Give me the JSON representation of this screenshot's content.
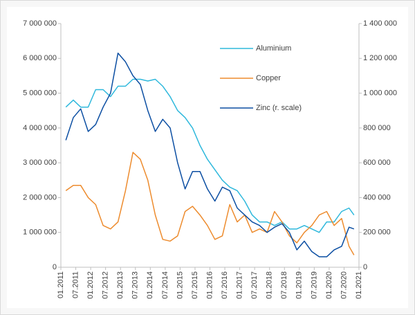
{
  "chart_data": {
    "type": "line",
    "x": [
      "2011-03",
      "2011-06",
      "2011-09",
      "2011-12",
      "2012-03",
      "2012-06",
      "2012-09",
      "2012-12",
      "2013-03",
      "2013-06",
      "2013-09",
      "2013-12",
      "2014-03",
      "2014-06",
      "2014-09",
      "2014-12",
      "2015-03",
      "2015-06",
      "2015-09",
      "2015-12",
      "2016-03",
      "2016-06",
      "2016-09",
      "2016-12",
      "2017-03",
      "2017-06",
      "2017-09",
      "2017-12",
      "2018-03",
      "2018-06",
      "2018-09",
      "2018-12",
      "2019-03",
      "2019-06",
      "2019-09",
      "2019-12",
      "2020-03",
      "2020-06",
      "2020-09",
      "2020-11"
    ],
    "series": [
      {
        "name": "Aluminium",
        "color": "#2eb8dc",
        "values": [
          4600000,
          4800000,
          4600000,
          4600000,
          5100000,
          5100000,
          4900000,
          5200000,
          5200000,
          5400000,
          5400000,
          5350000,
          5400000,
          5200000,
          4900000,
          4500000,
          4300000,
          4000000,
          3500000,
          3100000,
          2800000,
          2500000,
          2300000,
          2200000,
          1900000,
          1500000,
          1300000,
          1300000,
          1200000,
          1300000,
          1100000,
          1100000,
          1200000,
          1100000,
          1000000,
          1300000,
          1300000,
          1600000,
          1700000,
          1500000
        ]
      },
      {
        "name": "Copper",
        "color": "#ed8b2d",
        "values": [
          2200000,
          2350000,
          2350000,
          2000000,
          1800000,
          1200000,
          1100000,
          1300000,
          2200000,
          3300000,
          3100000,
          2500000,
          1500000,
          800000,
          750000,
          900000,
          1600000,
          1750000,
          1500000,
          1200000,
          800000,
          900000,
          1800000,
          1300000,
          1500000,
          1000000,
          1100000,
          1000000,
          1600000,
          1300000,
          900000,
          700000,
          1000000,
          1200000,
          1500000,
          1600000,
          1200000,
          1400000,
          600000,
          350000
        ]
      },
      {
        "name": "Zinc (r. scale)",
        "color": "#0b4ea2",
        "axis": "y2",
        "values": [
          730000,
          860000,
          910000,
          780000,
          820000,
          920000,
          1000000,
          1230000,
          1180000,
          1100000,
          1050000,
          900000,
          780000,
          850000,
          800000,
          600000,
          450000,
          550000,
          550000,
          450000,
          380000,
          460000,
          440000,
          340000,
          300000,
          260000,
          240000,
          200000,
          230000,
          250000,
          200000,
          100000,
          150000,
          90000,
          60000,
          60000,
          100000,
          120000,
          230000,
          220000
        ]
      }
    ],
    "xlim": [
      "2011-01",
      "2021-01"
    ],
    "xticks": [
      {
        "value": "2011-01",
        "label": "01.2011"
      },
      {
        "value": "2011-07",
        "label": "07.2011"
      },
      {
        "value": "2012-01",
        "label": "01.2012"
      },
      {
        "value": "2012-07",
        "label": "07.2012"
      },
      {
        "value": "2013-01",
        "label": "01.2013"
      },
      {
        "value": "2013-07",
        "label": "07.2013"
      },
      {
        "value": "2014-01",
        "label": "01.2014"
      },
      {
        "value": "2014-07",
        "label": "07.2014"
      },
      {
        "value": "2015-01",
        "label": "01.2015"
      },
      {
        "value": "2015-07",
        "label": "07.2015"
      },
      {
        "value": "2016-01",
        "label": "01.2016"
      },
      {
        "value": "2016-07",
        "label": "07.2016"
      },
      {
        "value": "2017-01",
        "label": "01.2017"
      },
      {
        "value": "2017-07",
        "label": "07.2017"
      },
      {
        "value": "2018-01",
        "label": "01.2018"
      },
      {
        "value": "2018-07",
        "label": "07.2018"
      },
      {
        "value": "2019-01",
        "label": "01.2019"
      },
      {
        "value": "2019-07",
        "label": "07.2019"
      },
      {
        "value": "2020-01",
        "label": "01.2020"
      },
      {
        "value": "2020-07",
        "label": "07.2020"
      },
      {
        "value": "2021-01",
        "label": "01.2021"
      }
    ],
    "ylim": [
      0,
      7000000
    ],
    "yticks": [
      0,
      {
        "value": 1000000,
        "label": "1 000 000"
      },
      {
        "value": 2000000,
        "label": "2 000 000"
      },
      {
        "value": 3000000,
        "label": "3 000 000"
      },
      {
        "value": 4000000,
        "label": "4 000 000"
      },
      {
        "value": 5000000,
        "label": "5 000 000"
      },
      {
        "value": 6000000,
        "label": "6 000 000"
      },
      {
        "value": 7000000,
        "label": "7 000 000"
      }
    ],
    "y2lim": [
      0,
      1400000
    ],
    "y2ticks": [
      0,
      {
        "value": 200000,
        "label": "200 000"
      },
      {
        "value": 400000,
        "label": "400 000"
      },
      {
        "value": 600000,
        "label": "600 000"
      },
      {
        "value": 800000,
        "label": "800 000"
      },
      {
        "value": 1000000,
        "label": "1 000 000"
      },
      {
        "value": 1200000,
        "label": "1 200 000"
      },
      {
        "value": 1400000,
        "label": "1 400 000"
      }
    ]
  }
}
